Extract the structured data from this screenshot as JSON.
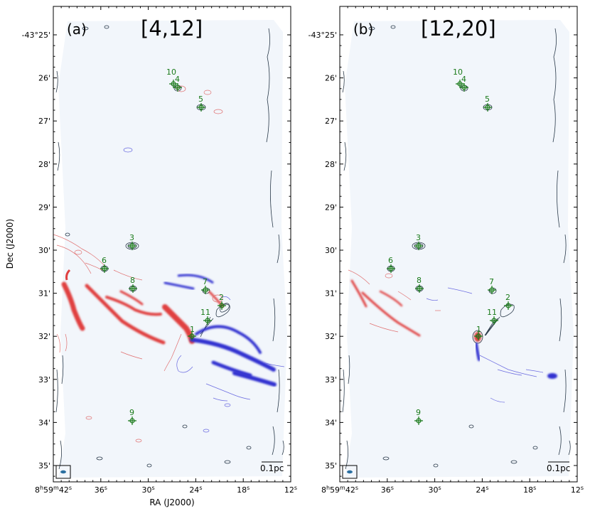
{
  "figure": {
    "panels": [
      {
        "label": "(a)",
        "velocity_range": "[4,12]",
        "scale_bar": "0.1pc",
        "sources": [
          {
            "id": "1",
            "ra": "8:59:24.3",
            "dec": "-43:32:00"
          },
          {
            "id": "2",
            "ra": "8:59:21.0",
            "dec": "-43:31:15"
          },
          {
            "id": "3",
            "ra": "8:59:31.8",
            "dec": "-43:29:52"
          },
          {
            "id": "4",
            "ra": "8:59:26.0",
            "dec": "-43:26:12"
          },
          {
            "id": "5",
            "ra": "8:59:23.0",
            "dec": "-43:26:40"
          },
          {
            "id": "6",
            "ra": "8:59:36.0",
            "dec": "-43:30:24"
          },
          {
            "id": "7",
            "ra": "8:59:22.8",
            "dec": "-43:30:55"
          },
          {
            "id": "8",
            "ra": "8:59:31.6",
            "dec": "-43:30:52"
          },
          {
            "id": "9",
            "ra": "8:59:31.8",
            "dec": "-43:33:56"
          },
          {
            "id": "10",
            "ra": "8:59:27.0",
            "dec": "-43:26:06"
          },
          {
            "id": "11",
            "ra": "8:59:22.3",
            "dec": "-43:31:38"
          }
        ]
      },
      {
        "label": "(b)",
        "velocity_range": "[12,20]",
        "scale_bar": "0.1pc",
        "sources": [
          {
            "id": "1",
            "ra": "8:59:24.3",
            "dec": "-43:32:00"
          },
          {
            "id": "2",
            "ra": "8:59:21.0",
            "dec": "-43:31:15"
          },
          {
            "id": "3",
            "ra": "8:59:31.8",
            "dec": "-43:29:52"
          },
          {
            "id": "4",
            "ra": "8:59:26.0",
            "dec": "-43:26:12"
          },
          {
            "id": "5",
            "ra": "8:59:23.0",
            "dec": "-43:26:40"
          },
          {
            "id": "6",
            "ra": "8:59:36.0",
            "dec": "-43:30:24"
          },
          {
            "id": "7",
            "ra": "8:59:22.8",
            "dec": "-43:30:55"
          },
          {
            "id": "8",
            "ra": "8:59:31.6",
            "dec": "-43:30:52"
          },
          {
            "id": "9",
            "ra": "8:59:31.8",
            "dec": "-43:33:56"
          },
          {
            "id": "10",
            "ra": "8:59:27.0",
            "dec": "-43:26:06"
          },
          {
            "id": "11",
            "ra": "8:59:22.3",
            "dec": "-43:31:38"
          }
        ]
      }
    ],
    "axes": {
      "xlabel": "RA (J2000)",
      "ylabel": "Dec (J2000)",
      "y_ticks": [
        "-43°25'",
        "26'",
        "27'",
        "28'",
        "29'",
        "30'",
        "31'",
        "32'",
        "33'",
        "34'",
        "35'"
      ],
      "x_tick_first": {
        "hours": "8",
        "h_unit": "h",
        "minutes": "59",
        "m_unit": "m",
        "seconds": "42",
        "s_unit": "s"
      },
      "x_ticks_rest": [
        "36s",
        "30s",
        "24s",
        "18s",
        "12s"
      ]
    },
    "colors": {
      "redshifted": "#e04040",
      "blueshifted": "#3030d0",
      "continuum": "#2a3a4a",
      "source_marker": "#1a7a1a",
      "background": "#f2f6fb"
    }
  }
}
